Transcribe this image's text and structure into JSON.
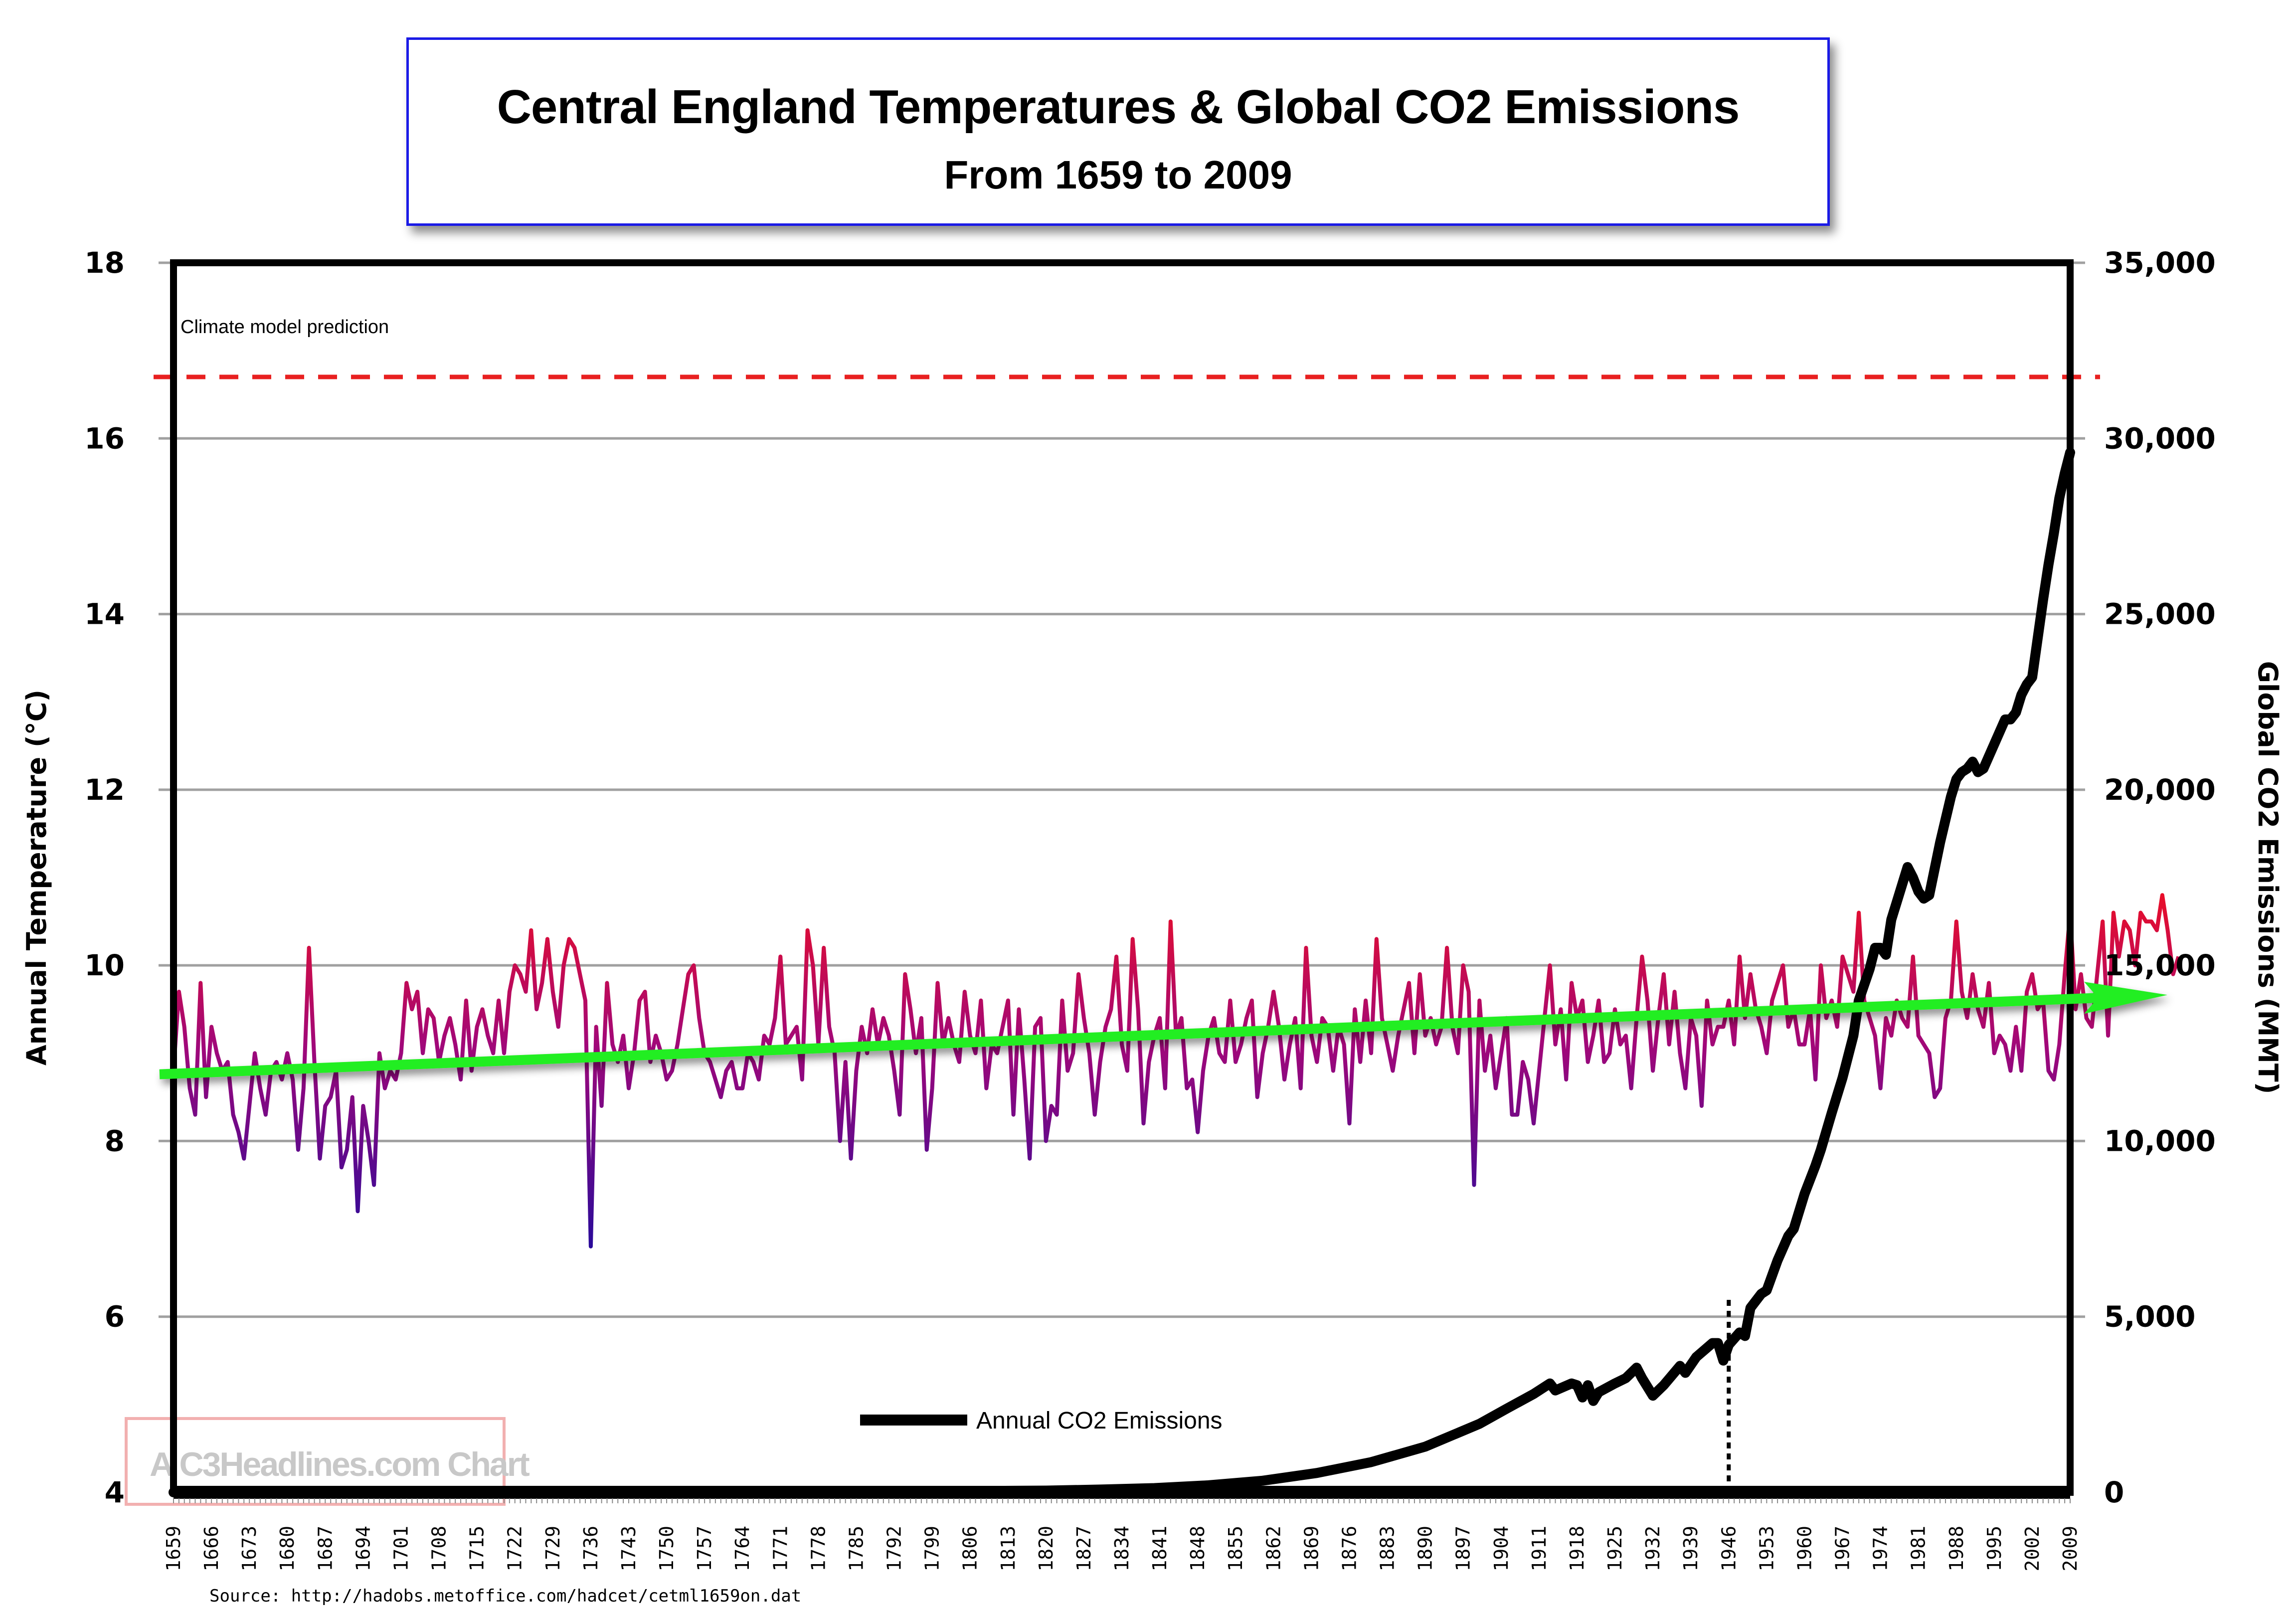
{
  "header": {
    "title": "Central England Temperatures & Global CO2 Emissions",
    "subtitle": "From 1659 to 2009"
  },
  "annotations": {
    "prediction_label": "Climate model prediction",
    "prediction_value_c": 16.7,
    "watermark": "A C3Headlines.com Chart",
    "source": "Source: http://hadobs.metoffice.com/hadcet/cetml1659on.dat",
    "marker_year": 1946
  },
  "colors": {
    "title_border": "#1a1ae6",
    "prediction_line": "#e82020",
    "co2_line": "#000000",
    "trend_arrow": "#22ee22",
    "temp_cold": "#2a0a9a",
    "temp_mid": "#a0087a",
    "temp_warm": "#ff1010",
    "gridline": "#a0a0a0",
    "watermark_border": "#f2b0b0"
  },
  "chart_data": {
    "type": "line",
    "title": "Central England Temperatures & Global CO2 Emissions",
    "subtitle": "From 1659 to 2009",
    "xlabel": "",
    "ylabel": "Annual  Temperature (°C)",
    "y2label": "Global CO2 Emissions (MMT)",
    "xlim": [
      1659,
      2009
    ],
    "ylim": [
      4,
      18
    ],
    "y2lim": [
      0,
      35000
    ],
    "grid": true,
    "legend_position": "bottom-center",
    "y_ticks": [
      "18",
      "16",
      "14",
      "12",
      "10",
      "8",
      "6",
      "4"
    ],
    "y_tick_values": [
      18,
      16,
      14,
      12,
      10,
      8,
      6,
      4
    ],
    "y2_ticks": [
      "35,000",
      "30,000",
      "25,000",
      "20,000",
      "15,000",
      "10,000",
      "5,000",
      "0"
    ],
    "y2_tick_values": [
      35000,
      30000,
      25000,
      20000,
      15000,
      10000,
      5000,
      0
    ],
    "x_ticks": [
      "1659",
      "1666",
      "1673",
      "1680",
      "1687",
      "1694",
      "1701",
      "1708",
      "1715",
      "1722",
      "1729",
      "1736",
      "1743",
      "1750",
      "1757",
      "1764",
      "1771",
      "1778",
      "1785",
      "1792",
      "1799",
      "1806",
      "1813",
      "1820",
      "1827",
      "1834",
      "1841",
      "1848",
      "1855",
      "1862",
      "1869",
      "1876",
      "1883",
      "1890",
      "1897",
      "1904",
      "1911",
      "1918",
      "1925",
      "1932",
      "1939",
      "1946",
      "1953",
      "1960",
      "1967",
      "1974",
      "1981",
      "1988",
      "1995",
      "2002",
      "2009"
    ],
    "series": [
      {
        "name": "Annual Temperature",
        "axis": "left",
        "x_start": 1659,
        "values": [
          8.8,
          9.7,
          9.3,
          8.6,
          8.3,
          9.8,
          8.5,
          9.3,
          9.0,
          8.8,
          8.9,
          8.3,
          8.1,
          7.8,
          8.4,
          9.0,
          8.6,
          8.3,
          8.8,
          8.9,
          8.7,
          9.0,
          8.7,
          7.9,
          8.6,
          10.2,
          8.9,
          7.8,
          8.4,
          8.5,
          8.8,
          7.7,
          7.9,
          8.5,
          7.2,
          8.4,
          8.0,
          7.5,
          9.0,
          8.6,
          8.8,
          8.7,
          9.0,
          9.8,
          9.5,
          9.7,
          9.0,
          9.5,
          9.4,
          8.9,
          9.2,
          9.4,
          9.1,
          8.7,
          9.6,
          8.8,
          9.3,
          9.5,
          9.2,
          9.0,
          9.6,
          9.0,
          9.7,
          10.0,
          9.9,
          9.7,
          10.4,
          9.5,
          9.8,
          10.3,
          9.7,
          9.3,
          10.0,
          10.3,
          10.2,
          9.9,
          9.6,
          6.8,
          9.3,
          8.4,
          9.8,
          9.1,
          8.9,
          9.2,
          8.6,
          9.0,
          9.6,
          9.7,
          8.9,
          9.2,
          9.0,
          8.7,
          8.8,
          9.1,
          9.5,
          9.9,
          10.0,
          9.4,
          9.0,
          8.9,
          8.7,
          8.5,
          8.8,
          8.9,
          8.6,
          8.6,
          9.0,
          8.9,
          8.7,
          9.2,
          9.1,
          9.4,
          10.1,
          9.1,
          9.2,
          9.3,
          8.7,
          10.4,
          10.0,
          9.1,
          10.2,
          9.3,
          9.0,
          8.0,
          8.9,
          7.8,
          8.8,
          9.3,
          9.0,
          9.5,
          9.1,
          9.4,
          9.2,
          8.8,
          8.3,
          9.9,
          9.5,
          9.0,
          9.4,
          7.9,
          8.6,
          9.8,
          9.1,
          9.4,
          9.1,
          8.9,
          9.7,
          9.2,
          9.0,
          9.6,
          8.6,
          9.1,
          9.0,
          9.3,
          9.6,
          8.3,
          9.5,
          8.7,
          7.8,
          9.3,
          9.4,
          8.0,
          8.4,
          8.3,
          9.6,
          8.8,
          9.0,
          9.9,
          9.4,
          9.0,
          8.3,
          8.9,
          9.3,
          9.5,
          10.1,
          9.1,
          8.8,
          10.3,
          9.5,
          8.2,
          8.9,
          9.2,
          9.4,
          8.6,
          10.5,
          9.2,
          9.4,
          8.6,
          8.7,
          8.1,
          8.8,
          9.2,
          9.4,
          9.0,
          8.9,
          9.6,
          8.9,
          9.1,
          9.4,
          9.6,
          8.5,
          9.0,
          9.3,
          9.7,
          9.3,
          8.7,
          9.1,
          9.4,
          8.6,
          10.2,
          9.2,
          8.9,
          9.4,
          9.3,
          8.8,
          9.3,
          9.1,
          8.2,
          9.5,
          8.9,
          9.6,
          9.0,
          10.3,
          9.4,
          9.1,
          8.8,
          9.2,
          9.5,
          9.8,
          9.0,
          9.9,
          9.2,
          9.4,
          9.1,
          9.3,
          10.2,
          9.3,
          9.0,
          10.0,
          9.7,
          7.5,
          9.6,
          8.8,
          9.2,
          8.6,
          9.0,
          9.4,
          8.3,
          8.3,
          8.9,
          8.7,
          8.2,
          8.8,
          9.4,
          10.0,
          9.1,
          9.5,
          8.7,
          9.8,
          9.4,
          9.6,
          8.9,
          9.2,
          9.6,
          8.9,
          9.0,
          9.5,
          9.1,
          9.2,
          8.6,
          9.4,
          10.1,
          9.6,
          8.8,
          9.4,
          9.9,
          9.1,
          9.7,
          9.0,
          8.6,
          9.4,
          9.2,
          8.4,
          9.6,
          9.1,
          9.3,
          9.3,
          9.6,
          9.1,
          10.1,
          9.4,
          9.9,
          9.5,
          9.3,
          9.0,
          9.6,
          9.8,
          10.0,
          9.3,
          9.5,
          9.1,
          9.1,
          9.5,
          8.7,
          10.0,
          9.4,
          9.6,
          9.3,
          10.1,
          9.9,
          9.7,
          10.6,
          9.6,
          9.4,
          9.2,
          8.6,
          9.4,
          9.2,
          9.6,
          9.4,
          9.3,
          10.1,
          9.2,
          9.1,
          9.0,
          8.5,
          8.6,
          9.4,
          9.6,
          10.5,
          9.7,
          9.4,
          9.9,
          9.5,
          9.3,
          9.8,
          9.0,
          9.2,
          9.1,
          8.8,
          9.3,
          8.8,
          9.7,
          9.9,
          9.5,
          9.6,
          8.8,
          8.7,
          9.1,
          9.9,
          10.6,
          9.5,
          9.9,
          9.4,
          9.3,
          9.9,
          10.5,
          9.2,
          10.6,
          10.1,
          10.5,
          10.4,
          10.0,
          10.6,
          10.5,
          10.5,
          10.4,
          10.8,
          10.4,
          9.9,
          10.1
        ]
      },
      {
        "name": "Annual CO2 Emissions",
        "axis": "right",
        "points": [
          [
            1659,
            0
          ],
          [
            1750,
            10
          ],
          [
            1800,
            30
          ],
          [
            1820,
            50
          ],
          [
            1830,
            80
          ],
          [
            1840,
            120
          ],
          [
            1850,
            200
          ],
          [
            1860,
            330
          ],
          [
            1870,
            550
          ],
          [
            1880,
            860
          ],
          [
            1890,
            1300
          ],
          [
            1900,
            1950
          ],
          [
            1905,
            2380
          ],
          [
            1910,
            2800
          ],
          [
            1913,
            3100
          ],
          [
            1914,
            2900
          ],
          [
            1917,
            3100
          ],
          [
            1918,
            3050
          ],
          [
            1919,
            2700
          ],
          [
            1920,
            3050
          ],
          [
            1921,
            2600
          ],
          [
            1922,
            2850
          ],
          [
            1925,
            3100
          ],
          [
            1927,
            3250
          ],
          [
            1929,
            3550
          ],
          [
            1930,
            3250
          ],
          [
            1932,
            2750
          ],
          [
            1934,
            3050
          ],
          [
            1937,
            3600
          ],
          [
            1938,
            3400
          ],
          [
            1940,
            3850
          ],
          [
            1943,
            4250
          ],
          [
            1944,
            4250
          ],
          [
            1945,
            3750
          ],
          [
            1946,
            4200
          ],
          [
            1948,
            4550
          ],
          [
            1949,
            4450
          ],
          [
            1950,
            5250
          ],
          [
            1952,
            5650
          ],
          [
            1953,
            5750
          ],
          [
            1955,
            6600
          ],
          [
            1957,
            7300
          ],
          [
            1958,
            7500
          ],
          [
            1960,
            8500
          ],
          [
            1962,
            9300
          ],
          [
            1963,
            9750
          ],
          [
            1965,
            10800
          ],
          [
            1967,
            11800
          ],
          [
            1969,
            13000
          ],
          [
            1970,
            14000
          ],
          [
            1972,
            14900
          ],
          [
            1973,
            15500
          ],
          [
            1974,
            15500
          ],
          [
            1975,
            15300
          ],
          [
            1976,
            16300
          ],
          [
            1977,
            16800
          ],
          [
            1979,
            17800
          ],
          [
            1980,
            17500
          ],
          [
            1981,
            17100
          ],
          [
            1982,
            16900
          ],
          [
            1983,
            17000
          ],
          [
            1985,
            18500
          ],
          [
            1987,
            19800
          ],
          [
            1988,
            20300
          ],
          [
            1989,
            20500
          ],
          [
            1990,
            20600
          ],
          [
            1991,
            20800
          ],
          [
            1992,
            20500
          ],
          [
            1993,
            20600
          ],
          [
            1995,
            21300
          ],
          [
            1997,
            22000
          ],
          [
            1998,
            22000
          ],
          [
            1999,
            22200
          ],
          [
            2000,
            22700
          ],
          [
            2001,
            23000
          ],
          [
            2002,
            23200
          ],
          [
            2003,
            24300
          ],
          [
            2004,
            25400
          ],
          [
            2005,
            26400
          ],
          [
            2006,
            27300
          ],
          [
            2007,
            28300
          ],
          [
            2008,
            29000
          ],
          [
            2009,
            29600
          ]
        ]
      }
    ],
    "trend": {
      "name": "Temperature trend arrow",
      "start": [
        1659,
        8.76
      ],
      "end_value_at_2009": 9.62
    },
    "reference_lines": [
      {
        "label": "Climate model prediction",
        "axis": "left",
        "value": 16.7,
        "style": "dashed",
        "color": "#e82020"
      }
    ],
    "marker_lines": [
      {
        "year": 1946,
        "axis": "right",
        "from": 0,
        "to": 5500,
        "style": "dotted"
      }
    ]
  },
  "legend": {
    "items": [
      {
        "label": "Annual CO2 Emissions",
        "color": "#000000"
      }
    ]
  }
}
